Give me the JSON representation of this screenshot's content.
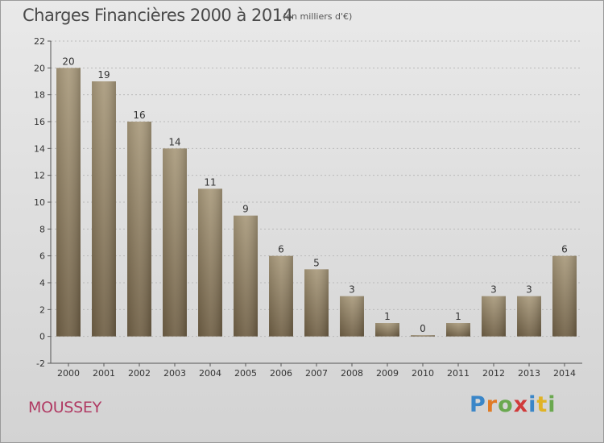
{
  "header": {
    "title": "Charges Financières 2000 à 2014",
    "subtitle": "(en milliers d'€)"
  },
  "footer": {
    "place": "MOUSSEY",
    "brand": "Proxiti",
    "brand_letters": [
      {
        "ch": "P",
        "color": "#3a86c8"
      },
      {
        "ch": "r",
        "color": "#e07b25"
      },
      {
        "ch": "o",
        "color": "#6aa84f"
      },
      {
        "ch": "x",
        "color": "#d03a3a"
      },
      {
        "ch": "i",
        "color": "#3a86c8"
      },
      {
        "ch": "t",
        "color": "#e0b325"
      },
      {
        "ch": "i",
        "color": "#6aa84f"
      }
    ]
  },
  "chart_data": {
    "type": "bar",
    "title": "Charges Financières 2000 à 2014",
    "subtitle": "(en milliers d'€)",
    "categories": [
      "2000",
      "2001",
      "2002",
      "2003",
      "2004",
      "2005",
      "2006",
      "2007",
      "2008",
      "2009",
      "2010",
      "2011",
      "2012",
      "2013",
      "2014"
    ],
    "values": [
      20,
      19,
      16,
      14,
      11,
      9,
      6,
      5,
      3,
      1,
      0,
      1,
      3,
      3,
      6
    ],
    "ylim": [
      -2,
      22
    ],
    "yticks": [
      -2,
      0,
      2,
      4,
      6,
      8,
      10,
      12,
      14,
      16,
      18,
      20,
      22
    ],
    "grid": true,
    "legend": "none",
    "bar_color_top": "#a99a7c",
    "bar_color_bottom": "#6f5f45"
  }
}
